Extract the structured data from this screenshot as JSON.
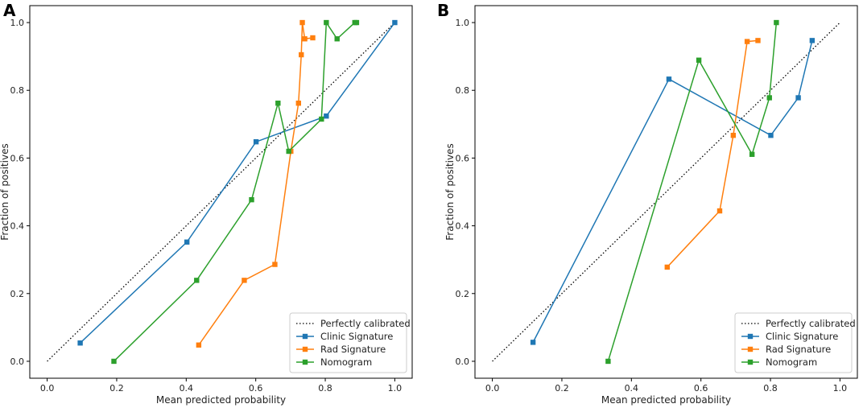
{
  "chart_data": [
    {
      "type": "line",
      "panel_label": "A",
      "xlabel": "Mean predicted probability",
      "ylabel": "Fraction of positives",
      "xlim": [
        -0.05,
        1.05
      ],
      "ylim": [
        -0.05,
        1.05
      ],
      "xticks": [
        "0.0",
        "0.2",
        "0.4",
        "0.6",
        "0.8",
        "1.0"
      ],
      "yticks": [
        "0.0",
        "0.2",
        "0.4",
        "0.6",
        "0.8",
        "1.0"
      ],
      "legend_position": "lower-right",
      "reference": {
        "name": "Perfectly calibrated",
        "x": [
          0,
          1
        ],
        "y": [
          0,
          1
        ],
        "color": "#000000"
      },
      "series": [
        {
          "name": "Clinic Signature",
          "color": "#1f77b4",
          "x": [
            0.095,
            0.402,
            0.601,
            0.803,
            1.0
          ],
          "y": [
            0.054,
            0.352,
            0.648,
            0.724,
            1.0
          ]
        },
        {
          "name": "Rad Signature",
          "color": "#ff7f0e",
          "x": [
            0.436,
            0.567,
            0.655,
            0.701,
            0.723,
            0.731,
            0.734,
            0.741,
            0.764
          ],
          "y": [
            0.048,
            0.239,
            0.286,
            0.62,
            0.762,
            0.905,
            1.0,
            0.952,
            0.955
          ]
        },
        {
          "name": "Nomogram",
          "color": "#2ca02c",
          "x": [
            0.192,
            0.43,
            0.588,
            0.664,
            0.695,
            0.789,
            0.803,
            0.834,
            0.885,
            0.89
          ],
          "y": [
            0.0,
            0.239,
            0.477,
            0.762,
            0.62,
            0.715,
            1.0,
            0.952,
            1.0,
            1.0
          ]
        }
      ]
    },
    {
      "type": "line",
      "panel_label": "B",
      "xlabel": "Mean predicted probability",
      "ylabel": "Fraction of positives",
      "xlim": [
        -0.05,
        1.05
      ],
      "ylim": [
        -0.05,
        1.05
      ],
      "xticks": [
        "0.0",
        "0.2",
        "0.4",
        "0.6",
        "0.8",
        "1.0"
      ],
      "yticks": [
        "0.0",
        "0.2",
        "0.4",
        "0.6",
        "0.8",
        "1.0"
      ],
      "legend_position": "lower-right",
      "reference": {
        "name": "Perfectly calibrated",
        "x": [
          0,
          1
        ],
        "y": [
          0,
          1
        ],
        "color": "#000000"
      },
      "series": [
        {
          "name": "Clinic Signature",
          "color": "#1f77b4",
          "x": [
            0.117,
            0.508,
            0.801,
            0.88,
            0.92
          ],
          "y": [
            0.056,
            0.833,
            0.667,
            0.778,
            0.947
          ]
        },
        {
          "name": "Rad Signature",
          "color": "#ff7f0e",
          "x": [
            0.503,
            0.654,
            0.693,
            0.733,
            0.764
          ],
          "y": [
            0.278,
            0.444,
            0.667,
            0.944,
            0.947
          ]
        },
        {
          "name": "Nomogram",
          "color": "#2ca02c",
          "x": [
            0.333,
            0.594,
            0.747,
            0.797,
            0.817
          ],
          "y": [
            0.0,
            0.889,
            0.611,
            0.778,
            1.0
          ]
        }
      ]
    }
  ]
}
